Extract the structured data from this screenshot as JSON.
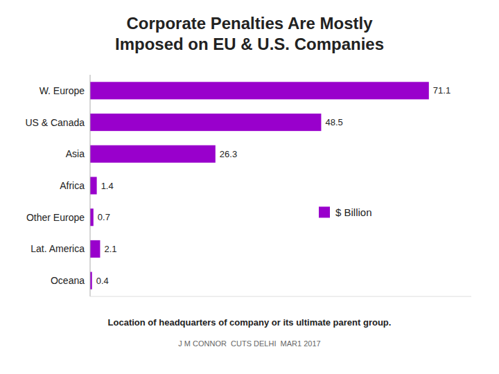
{
  "chart_data": {
    "type": "bar",
    "orientation": "horizontal",
    "title": "Corporate Penalties Are Mostly\nImposed on EU & U.S. Companies",
    "categories": [
      "W. Europe",
      "US & Canada",
      "Asia",
      "Africa",
      "Other Europe",
      "Lat. America",
      "Oceana"
    ],
    "series": [
      {
        "name": "$ Billion",
        "color": "#9900CC",
        "values": [
          71.1,
          48.5,
          26.3,
          1.4,
          0.7,
          2.1,
          0.4
        ]
      }
    ],
    "xlim": [
      0,
      80
    ],
    "data_labels": true,
    "tick_labels": "y",
    "grid": false,
    "legend": "right",
    "annotations": [
      "Location of headquarters of company or its ultimate parent group.",
      "J M CONNOR  CUTS DELHI  MAR1 2017"
    ]
  }
}
